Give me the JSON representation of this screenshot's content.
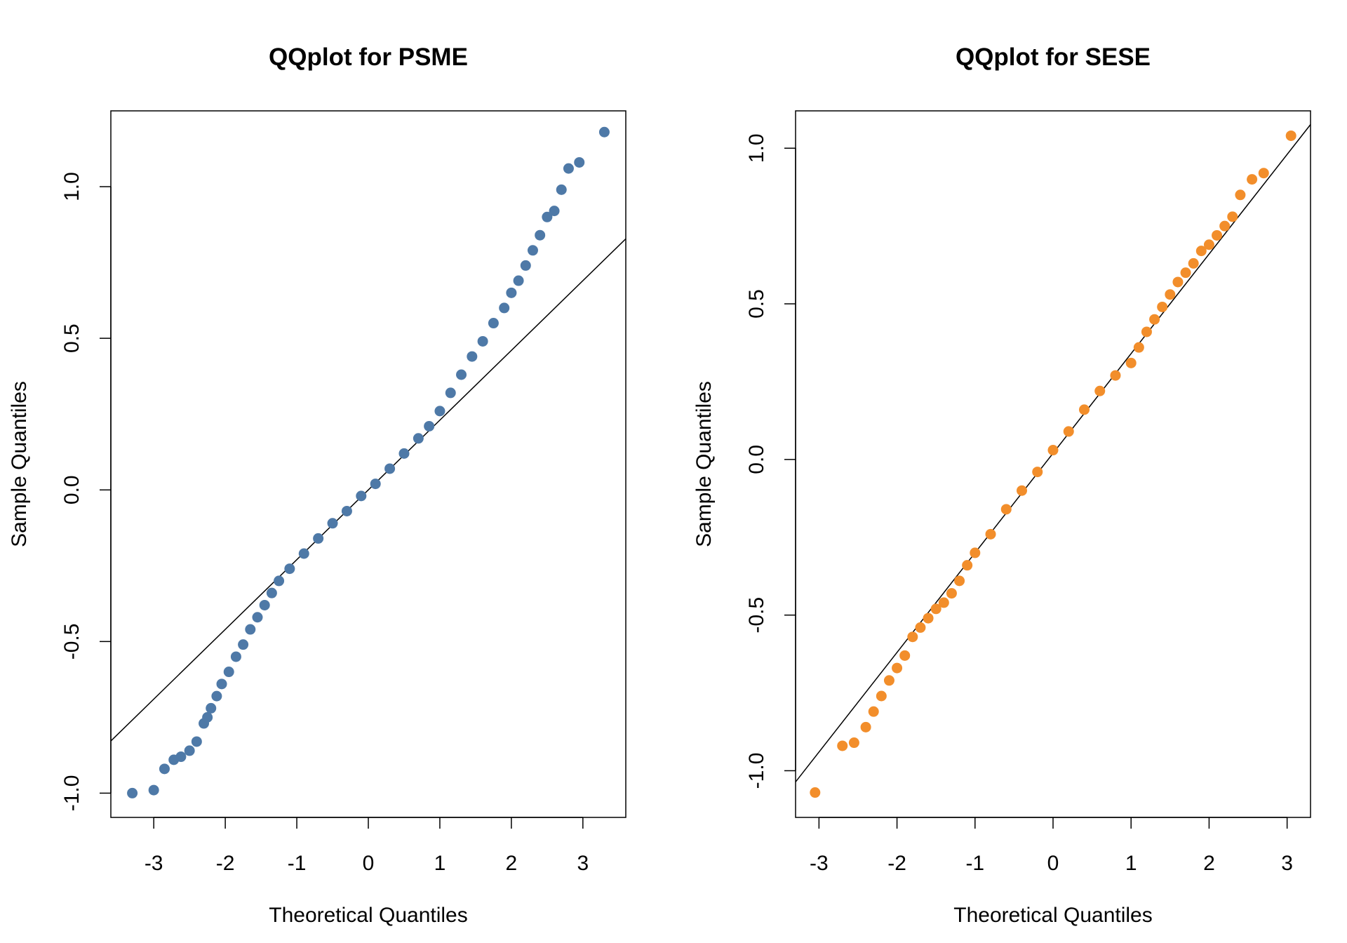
{
  "chart_data": [
    {
      "type": "scatter",
      "title": "QQplot for PSME",
      "xlabel": "Theoretical Quantiles",
      "ylabel": "Sample Quantiles",
      "xlim": [
        -3.6,
        3.6
      ],
      "ylim": [
        -1.08,
        1.25
      ],
      "xticks": [
        -3,
        -2,
        -1,
        0,
        1,
        2,
        3
      ],
      "xtick_labels": [
        "-3",
        "-2",
        "-1",
        "0",
        "1",
        "2",
        "3"
      ],
      "yticks": [
        -1.0,
        -0.5,
        0.0,
        0.5,
        1.0
      ],
      "ytick_labels": [
        "-1.0",
        "-0.5",
        "0.0",
        "0.5",
        "1.0"
      ],
      "point_color": "#4E79A7",
      "reference_line": {
        "slope": 0.23,
        "intercept": 0.0,
        "color": "#000000"
      },
      "grid": false,
      "series": [
        {
          "name": "PSME",
          "theoretical": [
            -3.3,
            -3.0,
            -2.85,
            -2.72,
            -2.62,
            -2.5,
            -2.4,
            -2.3,
            -2.25,
            -2.2,
            -2.12,
            -2.05,
            -1.95,
            -1.85,
            -1.75,
            -1.65,
            -1.55,
            -1.45,
            -1.35,
            -1.25,
            -1.1,
            -0.9,
            -0.7,
            -0.5,
            -0.3,
            -0.1,
            0.1,
            0.3,
            0.5,
            0.7,
            0.85,
            1.0,
            1.15,
            1.3,
            1.45,
            1.6,
            1.75,
            1.9,
            2.0,
            2.1,
            2.2,
            2.3,
            2.4,
            2.5,
            2.6,
            2.7,
            2.8,
            2.95,
            3.3
          ],
          "sample": [
            -1.0,
            -0.99,
            -0.92,
            -0.89,
            -0.88,
            -0.86,
            -0.83,
            -0.77,
            -0.75,
            -0.72,
            -0.68,
            -0.64,
            -0.6,
            -0.55,
            -0.51,
            -0.46,
            -0.42,
            -0.38,
            -0.34,
            -0.3,
            -0.26,
            -0.21,
            -0.16,
            -0.11,
            -0.07,
            -0.02,
            0.02,
            0.07,
            0.12,
            0.17,
            0.21,
            0.26,
            0.32,
            0.38,
            0.44,
            0.49,
            0.55,
            0.6,
            0.65,
            0.69,
            0.74,
            0.79,
            0.84,
            0.9,
            0.92,
            0.99,
            1.06,
            1.08,
            1.18
          ]
        }
      ]
    },
    {
      "type": "scatter",
      "title": "QQplot for SESE",
      "xlabel": "Theoretical Quantiles",
      "ylabel": "Sample Quantiles",
      "xlim": [
        -3.3,
        3.3
      ],
      "ylim": [
        -1.15,
        1.12
      ],
      "xticks": [
        -3,
        -2,
        -1,
        0,
        1,
        2,
        3
      ],
      "xtick_labels": [
        "-3",
        "-2",
        "-1",
        "0",
        "1",
        "2",
        "3"
      ],
      "yticks": [
        -1.0,
        -0.5,
        0.0,
        0.5,
        1.0
      ],
      "ytick_labels": [
        "-1.0",
        "-0.5",
        "0.0",
        "0.5",
        "1.0"
      ],
      "point_color": "#F28E2B",
      "reference_line": {
        "slope": 0.32,
        "intercept": 0.02,
        "color": "#000000"
      },
      "grid": false,
      "series": [
        {
          "name": "SESE",
          "theoretical": [
            -3.05,
            -2.7,
            -2.55,
            -2.4,
            -2.3,
            -2.2,
            -2.1,
            -2.0,
            -1.9,
            -1.8,
            -1.7,
            -1.6,
            -1.5,
            -1.4,
            -1.3,
            -1.2,
            -1.1,
            -1.0,
            -0.8,
            -0.6,
            -0.4,
            -0.2,
            0.0,
            0.2,
            0.4,
            0.6,
            0.8,
            1.0,
            1.1,
            1.2,
            1.3,
            1.4,
            1.5,
            1.6,
            1.7,
            1.8,
            1.9,
            2.0,
            2.1,
            2.2,
            2.3,
            2.4,
            2.55,
            2.7,
            3.05
          ],
          "sample": [
            -1.07,
            -0.92,
            -0.91,
            -0.86,
            -0.81,
            -0.76,
            -0.71,
            -0.67,
            -0.63,
            -0.57,
            -0.54,
            -0.51,
            -0.48,
            -0.46,
            -0.43,
            -0.39,
            -0.34,
            -0.3,
            -0.24,
            -0.16,
            -0.1,
            -0.04,
            0.03,
            0.09,
            0.16,
            0.22,
            0.27,
            0.31,
            0.36,
            0.41,
            0.45,
            0.49,
            0.53,
            0.57,
            0.6,
            0.63,
            0.67,
            0.69,
            0.72,
            0.75,
            0.78,
            0.85,
            0.9,
            0.92,
            1.04
          ]
        }
      ]
    }
  ]
}
